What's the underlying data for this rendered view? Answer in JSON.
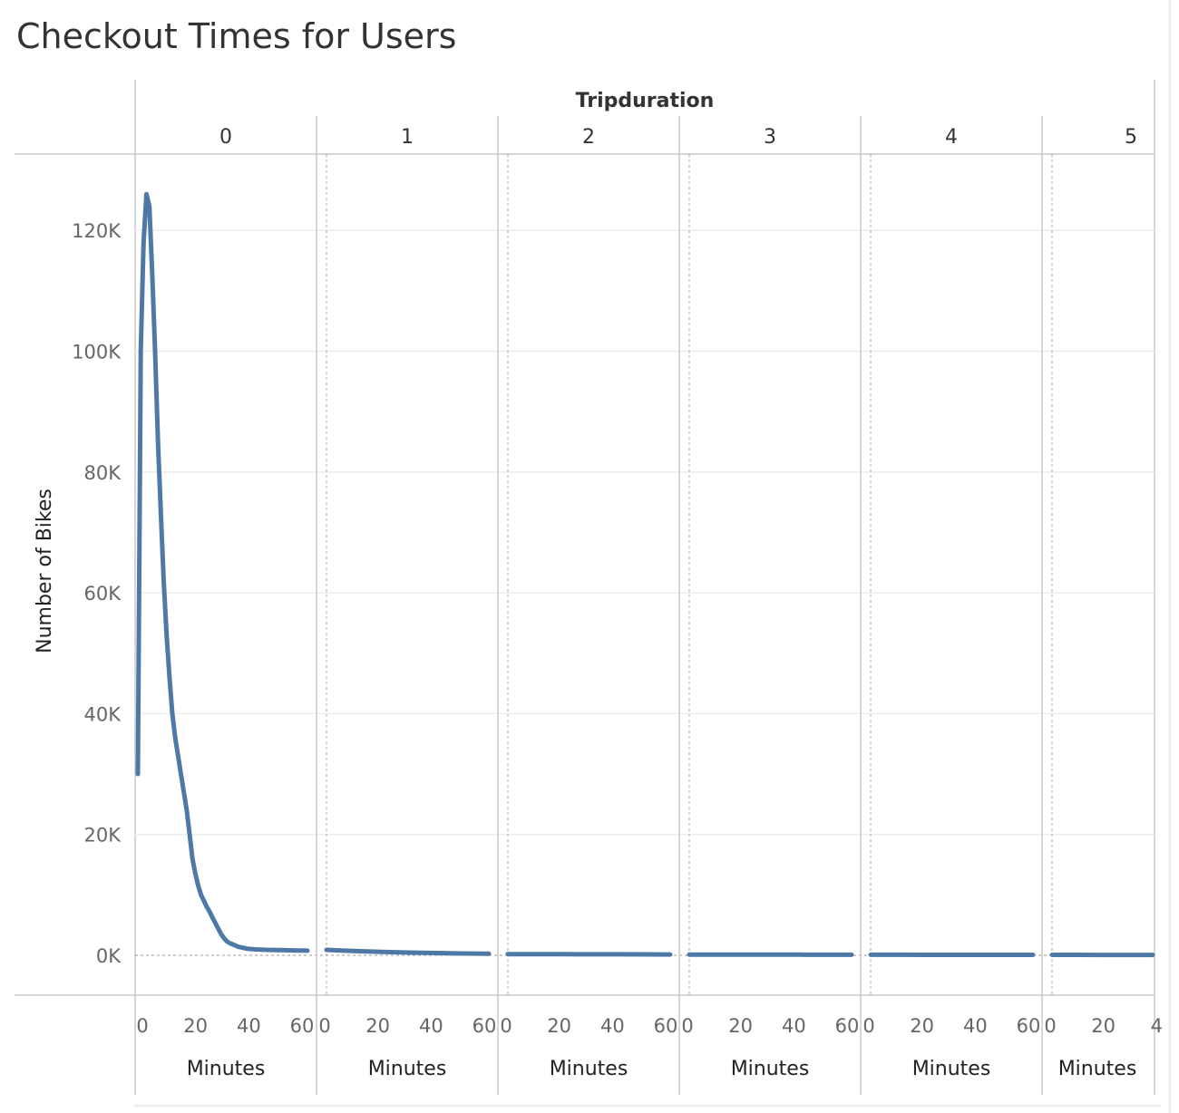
{
  "title": "Checkout Times for Users",
  "chart_data": {
    "type": "line",
    "title": "Checkout Times for Users",
    "column_header": "Tripduration",
    "ylabel": "Number of Bikes",
    "xlabel": "Minutes",
    "ylim": [
      0,
      130000
    ],
    "y_ticks": [
      0,
      20000,
      40000,
      60000,
      80000,
      100000,
      120000
    ],
    "y_tick_labels": [
      "0K",
      "20K",
      "40K",
      "60K",
      "80K",
      "100K",
      "120K"
    ],
    "x_range": [
      0,
      59
    ],
    "x_ticks": [
      0,
      20,
      40,
      60
    ],
    "x_tick_labels": [
      "0",
      "20",
      "40",
      "60"
    ],
    "last_panel_x_tick_labels": [
      "0",
      "20",
      "4"
    ],
    "grid": true,
    "line_color": "#4e79a7",
    "panels": [
      {
        "header": "0",
        "x": [
          0,
          1,
          2,
          3,
          4,
          5,
          6,
          7,
          8,
          9,
          10,
          11,
          12,
          13,
          14,
          15,
          16,
          17,
          18,
          19,
          20,
          21,
          22,
          23,
          24,
          25,
          26,
          27,
          28,
          29,
          30,
          31,
          32,
          33,
          34,
          35,
          36,
          37,
          38,
          39,
          40,
          41,
          42,
          43,
          44,
          45,
          46,
          47,
          48,
          49,
          50,
          51,
          52,
          53,
          54,
          55,
          56,
          57,
          58,
          59
        ],
        "values": [
          30000,
          100000,
          118000,
          126000,
          124000,
          113000,
          100000,
          85000,
          73000,
          62000,
          53000,
          46000,
          40000,
          36000,
          33000,
          30000,
          27000,
          24000,
          20000,
          16000,
          13500,
          11500,
          10000,
          9000,
          8000,
          7200,
          6200,
          5300,
          4400,
          3500,
          2800,
          2300,
          2000,
          1800,
          1600,
          1400,
          1300,
          1200,
          1100,
          1050,
          1000,
          980,
          960,
          940,
          920,
          900,
          890,
          880,
          870,
          860,
          850,
          840,
          830,
          820,
          810,
          800,
          800,
          790,
          780,
          770
        ]
      },
      {
        "header": "1",
        "x": [
          0,
          10,
          20,
          30,
          40,
          50,
          59
        ],
        "values": [
          900,
          700,
          550,
          450,
          380,
          300,
          250
        ]
      },
      {
        "header": "2",
        "x": [
          0,
          10,
          20,
          30,
          40,
          50,
          59
        ],
        "values": [
          200,
          190,
          180,
          170,
          160,
          150,
          140
        ]
      },
      {
        "header": "3",
        "x": [
          0,
          10,
          20,
          30,
          40,
          50,
          59
        ],
        "values": [
          120,
          115,
          110,
          105,
          100,
          95,
          90
        ]
      },
      {
        "header": "4",
        "x": [
          0,
          10,
          20,
          30,
          40,
          50,
          59
        ],
        "values": [
          90,
          85,
          80,
          78,
          75,
          72,
          70
        ]
      },
      {
        "header": "5",
        "x": [
          0,
          10,
          20,
          30,
          40
        ],
        "values": [
          70,
          68,
          65,
          62,
          60
        ]
      }
    ]
  }
}
